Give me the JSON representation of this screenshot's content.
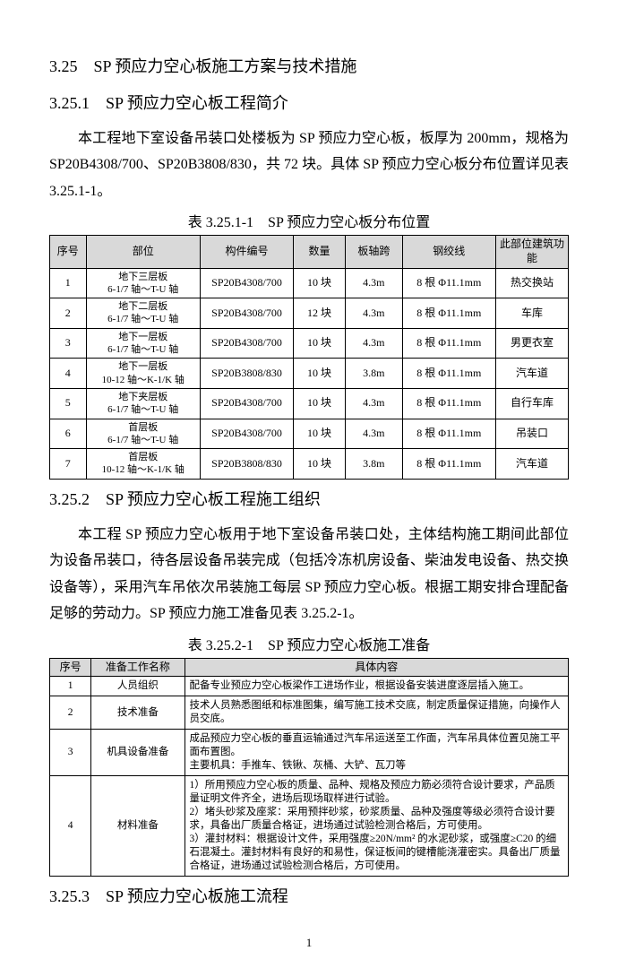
{
  "sec_3_25": "3.25　SP 预应力空心板施工方案与技术措施",
  "sec_3_25_1": "3.25.1　SP 预应力空心板工程简介",
  "para1": "本工程地下室设备吊装口处楼板为 SP 预应力空心板，板厚为 200mm，规格为 SP20B4308/700、SP20B3808/830，共 72 块。具体 SP 预应力空心板分布位置详见表 3.25.1-1。",
  "cap1": "表 3.25.1-1　SP 预应力空心板分布位置",
  "t1": {
    "headers": [
      "序号",
      "部位",
      "构件编号",
      "数量",
      "板轴跨",
      "钢绞线",
      "此部位建筑功能"
    ],
    "rows": [
      [
        "1",
        "地下三层板\n6-1/7 轴～T-U 轴",
        "SP20B4308/700",
        "10 块",
        "4.3m",
        "8 根 Φ11.1mm",
        "热交换站"
      ],
      [
        "2",
        "地下二层板\n6-1/7 轴～T-U 轴",
        "SP20B4308/700",
        "12 块",
        "4.3m",
        "8 根 Φ11.1mm",
        "车库"
      ],
      [
        "3",
        "地下一层板\n6-1/7 轴～T-U 轴",
        "SP20B4308/700",
        "10 块",
        "4.3m",
        "8 根 Φ11.1mm",
        "男更衣室"
      ],
      [
        "4",
        "地下一层板\n10-12 轴～K-1/K 轴",
        "SP20B3808/830",
        "10 块",
        "3.8m",
        "8 根 Φ11.1mm",
        "汽车道"
      ],
      [
        "5",
        "地下夹层板\n6-1/7 轴～T-U 轴",
        "SP20B4308/700",
        "10 块",
        "4.3m",
        "8 根 Φ11.1mm",
        "自行车库"
      ],
      [
        "6",
        "首层板\n6-1/7 轴～T-U 轴",
        "SP20B4308/700",
        "10 块",
        "4.3m",
        "8 根 Φ11.1mm",
        "吊装口"
      ],
      [
        "7",
        "首层板\n10-12 轴～K-1/K 轴",
        "SP20B3808/830",
        "10 块",
        "3.8m",
        "8 根 Φ11.1mm",
        "汽车道"
      ]
    ]
  },
  "sec_3_25_2": "3.25.2　SP 预应力空心板工程施工组织",
  "para2": "本工程 SP 预应力空心板用于地下室设备吊装口处，主体结构施工期间此部位为设备吊装口，待各层设备吊装完成（包括冷冻机房设备、柴油发电设备、热交换设备等），采用汽车吊依次吊装施工每层 SP 预应力空心板。根据工期安排合理配备足够的劳动力。SP 预应力施工准备见表 3.25.2-1。",
  "cap2": "表 3.25.2-1　SP 预应力空心板施工准备",
  "t2": {
    "headers": [
      "序号",
      "准备工作名称",
      "具体内容"
    ],
    "rows": [
      [
        "1",
        "人员组织",
        "配备专业预应力空心板梁作工进场作业，根据设备安装进度逐层插入施工。"
      ],
      [
        "2",
        "技术准备",
        "技术人员熟悉图纸和标准图集，编写施工技术交底，制定质量保证措施，向操作人员交底。"
      ],
      [
        "3",
        "机具设备准备",
        "成品预应力空心板的垂直运输通过汽车吊运送至工作面，汽车吊具体位置见施工平面布置图。\n主要机具：手推车、铁锹、灰桶、大铲、瓦刀等"
      ],
      [
        "4",
        "材料准备",
        "1）所用预应力空心板的质量、品种、规格及预应力筋必须符合设计要求，产品质量证明文件齐全，进场后现场取样进行试验。\n2）堵头砂浆及座浆：采用预拌砂浆，砂浆质量、品种及强度等级必须符合设计要求，具备出厂质量合格证，进场通过试验检测合格后，方可使用。\n3）灌封材料：根据设计文件，采用强度≥20N/mm² 的水泥砂浆，或强度≥C20 的细石混凝土。灌封材料有良好的和易性，保证板间的键槽能浇灌密实。具备出厂质量合格证，进场通过试验检测合格后，方可使用。"
      ]
    ]
  },
  "sec_3_25_3": "3.25.3　SP 预应力空心板施工流程",
  "pagenum": "1"
}
